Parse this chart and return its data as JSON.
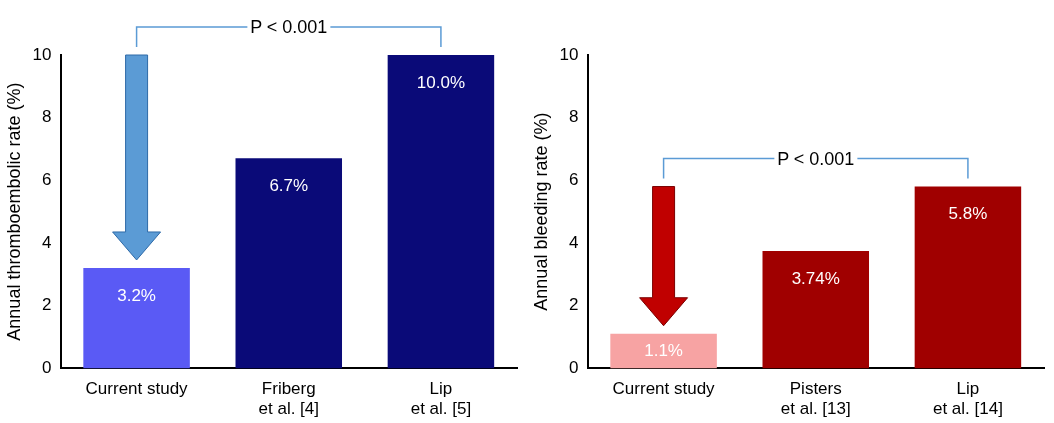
{
  "chart_data": [
    {
      "type": "bar",
      "ylabel": "Annual thromboembolic rate (%)",
      "categories": [
        "Current study",
        "Friberg\net al. [4]",
        "Lip\net al. [5]"
      ],
      "values": [
        3.2,
        6.7,
        10.0
      ],
      "colors": [
        "#5a5af5",
        "#0a0a78",
        "#0a0a78"
      ],
      "value_labels": [
        "3.2%",
        "6.7%",
        "10.0%"
      ],
      "ylim": [
        0,
        10
      ],
      "yticks": [
        0,
        2,
        4,
        6,
        8,
        10
      ],
      "grid": false,
      "legend": false,
      "annotations": [
        "P < 0.001"
      ]
    },
    {
      "type": "bar",
      "ylabel": "Annual bleeding rate (%)",
      "categories": [
        "Current study",
        "Pisters\net al. [13]",
        "Lip\net al. [14]"
      ],
      "values": [
        1.1,
        3.74,
        5.8
      ],
      "colors": [
        "#f7a3a3",
        "#a00000",
        "#a00000"
      ],
      "value_labels": [
        "1.1%",
        "3.74%",
        "5.8%"
      ],
      "ylim": [
        0,
        10
      ],
      "yticks": [
        0,
        2,
        4,
        6,
        8,
        10
      ],
      "grid": false,
      "legend": false,
      "annotations": [
        "P < 0.001"
      ]
    }
  ]
}
